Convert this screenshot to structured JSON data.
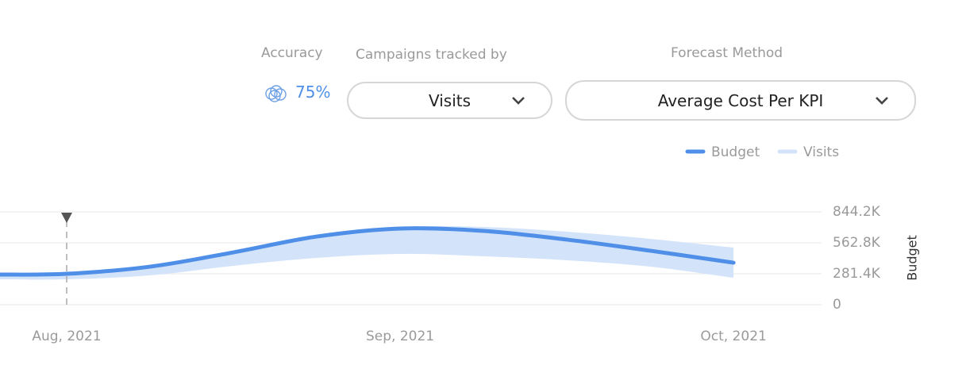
{
  "controls": {
    "accuracy": {
      "label": "Accuracy",
      "value": "75%"
    },
    "tracked_by": {
      "label": "Campaigns tracked by",
      "selected": "Visits"
    },
    "forecast_method": {
      "label": "Forecast Method",
      "selected": "Average Cost Per KPI"
    }
  },
  "chart_data": {
    "type": "line",
    "x": [
      -0.2,
      0,
      0.25,
      0.5,
      0.75,
      1.0,
      1.25,
      1.5,
      1.75,
      2.0
    ],
    "xlim": [
      -0.2,
      2.264
    ],
    "xticks": [
      {
        "value": 0,
        "label": "Aug, 2021"
      },
      {
        "value": 1,
        "label": "Sep, 2021"
      },
      {
        "value": 2,
        "label": "Oct, 2021"
      }
    ],
    "ylim": [
      0,
      844200
    ],
    "yticks": [
      0,
      {
        "value": 281400,
        "label": "281.4K"
      },
      {
        "value": 562800,
        "label": "562.8K"
      },
      {
        "value": 844200,
        "label": "844.2K"
      }
    ],
    "y_label": "Budget",
    "grid": true,
    "series": [
      {
        "name": "Budget",
        "color": "#4f8fe8",
        "values": [
          274000,
          281000,
          346000,
          476000,
          620000,
          693000,
          671000,
          592000,
          491000,
          382000
        ]
      },
      {
        "name": "Visits",
        "color": "#d3e4fa",
        "low": [
          231000,
          231000,
          267000,
          354000,
          426000,
          462000,
          440000,
          404000,
          346000,
          245000
        ],
        "high": [
          289000,
          296000,
          361000,
          491000,
          635000,
          707000,
          707000,
          664000,
          599000,
          519000
        ]
      }
    ]
  }
}
